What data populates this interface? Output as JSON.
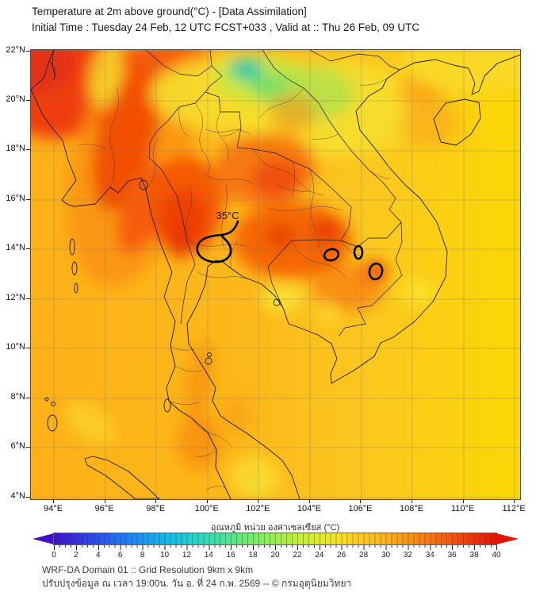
{
  "header": {
    "title": "Temperature at 2m above ground(°C) - [Data Assimilation]",
    "subtitle": "Initial Time : Tuesday 24 Feb, 12 UTC FCST+033 , Valid at :: Thu 26 Feb, 09 UTC"
  },
  "map": {
    "contour_label": "35°C",
    "axes": {
      "lat_labels": [
        "22°N",
        "20°N",
        "18°N",
        "16°N",
        "14°N",
        "12°N",
        "10°N",
        "8°N",
        "6°N",
        "4°N"
      ],
      "lon_labels": [
        "94°E",
        "96°E",
        "98°E",
        "100°E",
        "102°E",
        "104°E",
        "106°E",
        "108°E",
        "110°E",
        "112°E"
      ]
    },
    "colors": {
      "sea_west": "#fcb117",
      "sea_east": "#fbd705",
      "hot_core": "#e83b06",
      "warm_orange": "#f98d10",
      "cool_green": "#35cf9f",
      "boundary": "#1a1a1a"
    }
  },
  "colorbar": {
    "title": "อุณหภูมิ หน่วย องศาเซลเซียส (°C)",
    "range": [
      0,
      40
    ],
    "ticks": [
      0,
      2,
      4,
      6,
      8,
      10,
      12,
      14,
      16,
      18,
      20,
      22,
      24,
      26,
      28,
      30,
      32,
      34,
      36,
      38,
      40
    ],
    "stops": [
      {
        "value": 0,
        "color": "#3f10c8"
      },
      {
        "value": 2,
        "color": "#3430dc"
      },
      {
        "value": 4,
        "color": "#2a52ea"
      },
      {
        "value": 6,
        "color": "#2174f4"
      },
      {
        "value": 8,
        "color": "#1a96f2"
      },
      {
        "value": 10,
        "color": "#17b4e8"
      },
      {
        "value": 12,
        "color": "#1fccd2"
      },
      {
        "value": 14,
        "color": "#35dcb2"
      },
      {
        "value": 16,
        "color": "#52e68e"
      },
      {
        "value": 18,
        "color": "#74ec68"
      },
      {
        "value": 20,
        "color": "#9aee4c"
      },
      {
        "value": 22,
        "color": "#bfee3a"
      },
      {
        "value": 24,
        "color": "#e0ea30"
      },
      {
        "value": 26,
        "color": "#f6de29"
      },
      {
        "value": 28,
        "color": "#fcc723"
      },
      {
        "value": 30,
        "color": "#fbaf1d"
      },
      {
        "value": 32,
        "color": "#f99417"
      },
      {
        "value": 34,
        "color": "#f67711"
      },
      {
        "value": 36,
        "color": "#f1560b"
      },
      {
        "value": 38,
        "color": "#ea3506"
      },
      {
        "value": 40,
        "color": "#e11402"
      }
    ]
  },
  "footer": {
    "line1": "WRF-DA Domain 01 :: Grid Resolution 9km x 9km",
    "line2": "ปรับปรุงข้อมูล ณ เวลา 19:00น. วัน อ. ที่ 24 ก.พ. 2569 -- © กรมอุตุนิยมวิทยา"
  },
  "chart_data": {
    "type": "heatmap",
    "title": "Temperature at 2m above ground(°C) - [Data Assimilation]",
    "x_ticks": [
      "94°E",
      "96°E",
      "98°E",
      "100°E",
      "102°E",
      "104°E",
      "106°E",
      "108°E",
      "110°E",
      "112°E"
    ],
    "y_ticks": [
      "4°N",
      "6°N",
      "8°N",
      "10°N",
      "12°N",
      "14°N",
      "16°N",
      "18°N",
      "20°N",
      "22°N"
    ],
    "colorbar": {
      "min": 0,
      "max": 40,
      "major_step": 2,
      "minor_step": 0.5,
      "unit": "°C",
      "label": "อุณหภูมิ หน่วย องศาเซลเซียส (°C)"
    },
    "contours": [
      {
        "value": 35,
        "label": "35°C",
        "approx_location": "central Thailand ~100°E 14.3°N"
      },
      {
        "value": 35,
        "approx_location": "Cambodia ~104.6°E 13.8°N"
      },
      {
        "value": 35,
        "approx_location": "~105.7°E 13.9°N"
      },
      {
        "value": 35,
        "approx_location": "southern Vietnam highlands ~106.4°E 13.2°N"
      }
    ],
    "regions_estimate": [
      {
        "region": "Andaman Sea (west)",
        "temp_c": 30
      },
      {
        "region": "South China Sea (east)",
        "temp_c": 27
      },
      {
        "region": "central Myanmar band",
        "temp_c": 34
      },
      {
        "region": "central Thailand hot core",
        "temp_c": 35
      },
      {
        "region": "NE Thailand / Cambodia",
        "temp_c": 34
      },
      {
        "region": "northern Laos / Vietnam green patch",
        "temp_c": 17
      },
      {
        "region": "northern Vietnam yellow zone",
        "temp_c": 24
      },
      {
        "region": "Gulf of Thailand",
        "temp_c": 29
      },
      {
        "region": "Hainan island center",
        "temp_c": 31
      }
    ]
  }
}
